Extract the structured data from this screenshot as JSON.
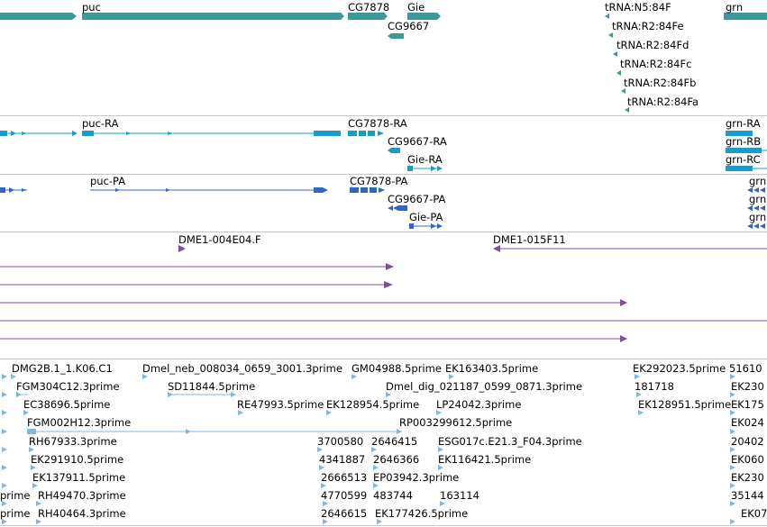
{
  "colors": {
    "gene": "#3a9a9a",
    "transcript": "#1a9bc9",
    "protein": "#2f68c4",
    "clone": "#7b4fa0",
    "est": "#7fb8dc",
    "separator": "#c8c8c8"
  },
  "gene_track": {
    "labels": [
      "puc",
      "CG7878",
      "Gie",
      "CG9667",
      "tRNA:N5:84F",
      "tRNA:R2:84Fe",
      "tRNA:R2:84Fd",
      "tRNA:R2:84Fc",
      "tRNA:R2:84Fb",
      "tRNA:R2:84Fa",
      "grn"
    ]
  },
  "transcript_track": {
    "labels": [
      "puc-RA",
      "CG7878-RA",
      "CG9667-RA",
      "Gie-RA",
      "grn-RA",
      "grn-RB",
      "grn-RC"
    ]
  },
  "protein_track": {
    "labels": [
      "puc-PA",
      "CG7878-PA",
      "CG9667-PA",
      "Gie-PA",
      "grn",
      "grn",
      "grn"
    ]
  },
  "clone_track": {
    "labels": [
      "DME1-004E04.F",
      "DME1-015F11"
    ]
  },
  "est_track": {
    "labels": [
      "DMG2B.1_1.K06.C1",
      "Dmel_neb_008034_0659_3001.3prime",
      "GM04988.5prime",
      "EK163403.5prime",
      "EK292023.5prime",
      "51610",
      "FGM304C12.3prime",
      "SD11844.5prime",
      "Dmel_dig_021187_0599_0871.3prime",
      "181718",
      "EK230",
      "EC38696.5prime",
      "RE47993.5prime",
      "EK128954.5prime",
      "LP24042.3prime",
      "EK128951.5prime",
      "EK175",
      "FGM002H12.3prime",
      "RP003299612.5prime",
      "EK024",
      "RH67933.3prime",
      "3700580",
      "2646415",
      "ESG017c.E21.3_F04.3prime",
      "20402",
      "EK291910.5prime",
      "4341887",
      "2646366",
      "EK116421.5prime",
      "EK060",
      "EK137911.5prime",
      "2666513",
      "EP03942.3prime",
      "EK230",
      "prime",
      "RH49470.3prime",
      "4770599",
      "483744",
      "163114",
      "35144",
      "prime",
      "RH40464.3prime",
      "2646615",
      "EK177426.5prime",
      "EK07"
    ]
  }
}
